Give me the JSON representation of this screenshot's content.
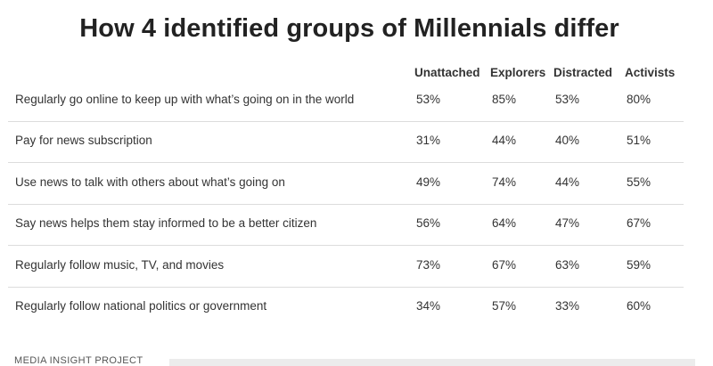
{
  "chart_data": {
    "type": "table",
    "title": "How 4 identified groups of Millennials differ",
    "columns": [
      "Unattached",
      "Explorers",
      "Distracted",
      "Activists"
    ],
    "rows": [
      {
        "label": "Regularly go online to keep up with what’s going on in the world",
        "values": [
          "53%",
          "85%",
          "53%",
          "80%"
        ]
      },
      {
        "label": "Pay for news subscription",
        "values": [
          "31%",
          "44%",
          "40%",
          "51%"
        ]
      },
      {
        "label": "Use news to talk with others about what’s going on",
        "values": [
          "49%",
          "74%",
          "44%",
          "55%"
        ]
      },
      {
        "label": "Say news helps them stay informed to be a better citizen",
        "values": [
          "56%",
          "64%",
          "47%",
          "67%"
        ]
      },
      {
        "label": "Regularly follow music, TV, and movies",
        "values": [
          "73%",
          "67%",
          "63%",
          "59%"
        ]
      },
      {
        "label": "Regularly follow national politics or government",
        "values": [
          "34%",
          "57%",
          "33%",
          "60%"
        ]
      }
    ]
  },
  "footer": {
    "source": "MEDIA INSIGHT PROJECT"
  }
}
